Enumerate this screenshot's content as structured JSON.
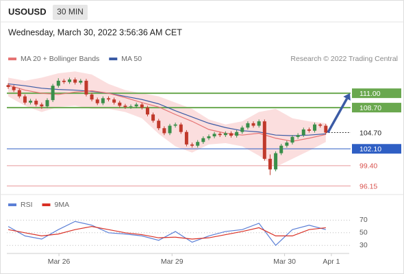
{
  "header": {
    "symbol": "USOUSD",
    "interval": "30 MIN",
    "datetime": "Wednesday, March 30, 2022 3:56:36 AM CET"
  },
  "chart_data": [
    {
      "type": "candlestick",
      "source": "Research © 2022 Trading Central",
      "up_color": "#3a8f4a",
      "down_color": "#c0392b",
      "xlim": [
        -0.25,
        61.2
      ],
      "ylim": [
        95,
        115.4
      ],
      "candles": [
        [
          112.3,
          112.6,
          111.7,
          112.0
        ],
        [
          112.0,
          112.3,
          111.2,
          111.5
        ],
        [
          111.5,
          111.8,
          110.2,
          110.5
        ],
        [
          110.5,
          110.8,
          109.2,
          109.5
        ],
        [
          109.5,
          110.1,
          109.2,
          109.8
        ],
        [
          109.8,
          110.1,
          108.9,
          109.2
        ],
        [
          109.2,
          109.5,
          108.5,
          108.9
        ],
        [
          108.9,
          110.2,
          108.6,
          109.9
        ],
        [
          109.9,
          112.5,
          109.6,
          112.2
        ],
        [
          112.2,
          113.4,
          111.9,
          113.0
        ],
        [
          113.0,
          113.3,
          112.5,
          112.8
        ],
        [
          112.8,
          113.5,
          112.5,
          113.2
        ],
        [
          113.2,
          113.5,
          112.4,
          112.7
        ],
        [
          112.7,
          113.3,
          112.4,
          113.0
        ],
        [
          113.0,
          113.3,
          110.5,
          110.8
        ],
        [
          110.8,
          111.1,
          109.7,
          110.0
        ],
        [
          110.0,
          110.3,
          109.1,
          109.4
        ],
        [
          109.4,
          110.5,
          109.1,
          110.2
        ],
        [
          110.2,
          110.5,
          109.7,
          110.0
        ],
        [
          110.0,
          110.3,
          109.2,
          109.5
        ],
        [
          109.5,
          109.8,
          108.7,
          109.0
        ],
        [
          109.0,
          109.3,
          108.5,
          108.8
        ],
        [
          108.8,
          109.2,
          108.5,
          108.9
        ],
        [
          108.9,
          109.5,
          108.6,
          109.2
        ],
        [
          109.2,
          109.5,
          108.4,
          108.7
        ],
        [
          108.7,
          109.0,
          107.3,
          107.6
        ],
        [
          107.6,
          107.9,
          106.3,
          106.6
        ],
        [
          106.6,
          106.9,
          105.1,
          105.4
        ],
        [
          105.4,
          105.7,
          104.3,
          104.6
        ],
        [
          104.6,
          106.1,
          104.3,
          105.8
        ],
        [
          105.8,
          106.3,
          105.5,
          106.0
        ],
        [
          106.0,
          106.3,
          104.5,
          104.8
        ],
        [
          104.8,
          105.1,
          102.5,
          102.8
        ],
        [
          102.8,
          103.1,
          102.3,
          102.6
        ],
        [
          102.6,
          103.5,
          102.3,
          103.2
        ],
        [
          103.2,
          104.1,
          102.9,
          103.8
        ],
        [
          103.8,
          104.4,
          103.5,
          104.1
        ],
        [
          104.1,
          104.8,
          103.8,
          104.5
        ],
        [
          104.5,
          104.8,
          104.0,
          104.3
        ],
        [
          104.3,
          104.9,
          104.0,
          104.6
        ],
        [
          104.6,
          104.9,
          103.9,
          104.2
        ],
        [
          104.2,
          105.1,
          103.9,
          104.8
        ],
        [
          104.8,
          105.8,
          104.5,
          105.5
        ],
        [
          105.5,
          106.5,
          105.2,
          106.2
        ],
        [
          106.2,
          106.5,
          105.5,
          105.8
        ],
        [
          105.8,
          106.8,
          105.5,
          106.5
        ],
        [
          106.5,
          106.8,
          100.2,
          100.5
        ],
        [
          100.5,
          101.2,
          97.9,
          98.8
        ],
        [
          98.8,
          101.7,
          98.5,
          101.4
        ],
        [
          101.4,
          102.9,
          101.1,
          102.6
        ],
        [
          102.6,
          103.4,
          102.3,
          103.1
        ],
        [
          103.1,
          104.3,
          102.8,
          104.0
        ],
        [
          104.0,
          104.6,
          103.7,
          104.3
        ],
        [
          104.3,
          105.5,
          104.0,
          105.2
        ],
        [
          105.2,
          105.5,
          104.7,
          105.0
        ],
        [
          105.0,
          106.3,
          104.7,
          106.0
        ],
        [
          106.0,
          106.2,
          105.5,
          105.8
        ],
        [
          105.8,
          106.1,
          104.4,
          104.7
        ]
      ],
      "series": [
        {
          "name": "MA 20 + Bollinger Bands",
          "color": "#e57373",
          "x": [
            0,
            3,
            6,
            9,
            12,
            15,
            18,
            21,
            24,
            27,
            30,
            33,
            36,
            39,
            42,
            45,
            48,
            51,
            54,
            57
          ],
          "values": [
            112.3,
            111.5,
            111.0,
            110.8,
            111.2,
            111.4,
            111.0,
            110.3,
            109.5,
            108.8,
            107.6,
            106.5,
            105.2,
            104.6,
            104.3,
            104.6,
            103.8,
            103.3,
            103.8,
            104.4
          ]
        },
        {
          "name": "MA 50",
          "color": "#3b5ba5",
          "x": [
            0,
            3,
            6,
            9,
            12,
            15,
            18,
            21,
            24,
            27,
            30,
            33,
            36,
            39,
            42,
            45,
            48,
            51,
            54,
            57
          ],
          "values": [
            112.5,
            112.2,
            111.8,
            111.6,
            111.5,
            111.3,
            111.0,
            110.5,
            110.0,
            109.3,
            108.2,
            107.2,
            106.2,
            105.5,
            105.0,
            104.8,
            104.3,
            104.2,
            104.3,
            104.5
          ]
        }
      ],
      "bands": {
        "color": "#f9d3d3",
        "x": [
          0,
          3,
          6,
          9,
          12,
          15,
          18,
          21,
          24,
          27,
          30,
          33,
          36,
          39,
          42,
          45,
          48,
          51,
          54,
          57
        ],
        "upper": [
          113.5,
          113.0,
          113.5,
          114.2,
          114.5,
          114.0,
          112.5,
          111.5,
          111.0,
          110.5,
          109.5,
          108.5,
          106.8,
          106.0,
          106.5,
          108.0,
          108.5,
          107.0,
          106.5,
          106.2
        ],
        "lower": [
          110.5,
          109.0,
          108.0,
          108.8,
          109.0,
          108.5,
          108.5,
          108.0,
          107.0,
          104.5,
          102.5,
          101.5,
          102.8,
          103.0,
          102.5,
          101.0,
          99.2,
          100.5,
          101.8,
          103.2
        ]
      },
      "levels": [
        {
          "value": 111,
          "label": "111.00",
          "color": "#6aa84f",
          "kind": "box"
        },
        {
          "value": 108.7,
          "label": "108.70",
          "color": "#6aa84f",
          "kind": "box"
        },
        {
          "value": 104.7,
          "label": "104.70",
          "color": "#333333",
          "kind": "current"
        },
        {
          "value": 102.1,
          "label": "102.10",
          "color": "#2f5fc4",
          "kind": "box"
        },
        {
          "value": 99.4,
          "label": "99.40",
          "color": "#e8999b",
          "kind": "text"
        },
        {
          "value": 96.15,
          "label": "96.15",
          "color": "#e8999b",
          "kind": "text"
        }
      ]
    },
    {
      "type": "line",
      "xlim": [
        -0.25,
        61.2
      ],
      "ylim": [
        15,
        90
      ],
      "yticks": [
        30,
        50,
        70
      ],
      "xticks": [
        {
          "value": 9.1,
          "label": "Mar 26"
        },
        {
          "value": 29.4,
          "label": "Mar 29"
        },
        {
          "value": 49.6,
          "label": "Mar 30"
        },
        {
          "value": 58,
          "label": "Apr 1"
        }
      ],
      "series": [
        {
          "name": "RSI",
          "color": "#5b7fd6",
          "x": [
            0,
            3,
            6,
            9,
            12,
            15,
            18,
            21,
            24,
            27,
            30,
            33,
            36,
            39,
            42,
            45,
            48,
            51,
            54,
            57
          ],
          "values": [
            60,
            45,
            40,
            55,
            68,
            62,
            50,
            48,
            45,
            38,
            52,
            35,
            45,
            52,
            55,
            65,
            30,
            55,
            62,
            55
          ]
        },
        {
          "name": "9MA",
          "color": "#d93025",
          "x": [
            0,
            3,
            6,
            9,
            12,
            15,
            18,
            21,
            24,
            27,
            30,
            33,
            36,
            39,
            42,
            45,
            48,
            51,
            54,
            57
          ],
          "values": [
            55,
            50,
            45,
            48,
            55,
            60,
            55,
            50,
            47,
            42,
            43,
            40,
            42,
            47,
            52,
            58,
            45,
            45,
            55,
            58
          ]
        }
      ]
    }
  ]
}
